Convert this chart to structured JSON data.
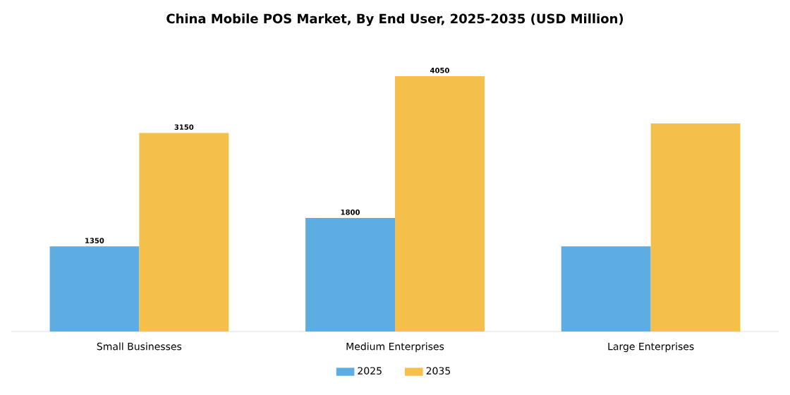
{
  "chart_data": {
    "type": "bar",
    "title": "China Mobile POS Market, By End User, 2025-2035 (USD Million)",
    "categories": [
      "Small Businesses",
      "Medium Enterprises",
      "Large Enterprises"
    ],
    "series": [
      {
        "name": "2025",
        "color": "#5dade2",
        "values": [
          1350,
          1800,
          1350
        ],
        "value_labels": [
          "1350",
          "1800",
          null
        ]
      },
      {
        "name": "2035",
        "color": "#f5c04a",
        "values": [
          3150,
          4050,
          3300
        ],
        "value_labels": [
          "3150",
          "4050",
          null
        ]
      }
    ],
    "tick_labels": "x",
    "legend": "bottom"
  }
}
